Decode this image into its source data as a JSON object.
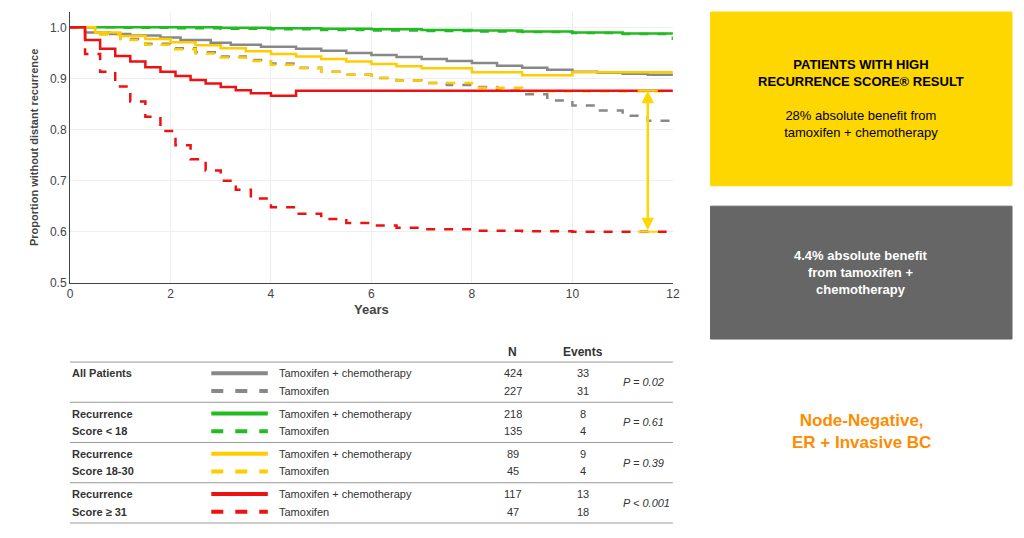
{
  "chart_data": {
    "type": "step",
    "xlabel": "Years",
    "ylabel": "Proportion without distant recurrence",
    "xlim": [
      0,
      12
    ],
    "ylim": [
      0.5,
      1.03
    ],
    "xticks": [
      0,
      2,
      4,
      6,
      8,
      10,
      12
    ],
    "yticks": [
      0.5,
      0.6,
      0.7,
      0.8,
      0.9,
      {
        "value": 1.0,
        "label": "1.0"
      }
    ],
    "series": [
      {
        "color": "#888888",
        "line_style": "solid",
        "x": [
          0,
          0.3,
          0.8,
          1.2,
          1.8,
          2.2,
          2.8,
          3.2,
          3.8,
          4.5,
          5,
          5.5,
          6,
          6.5,
          7,
          7.5,
          8,
          8.5,
          9,
          9.5,
          10,
          10.5,
          11,
          11.5,
          12
        ],
        "values": [
          1.0,
          0.99,
          0.987,
          0.984,
          0.98,
          0.975,
          0.97,
          0.966,
          0.962,
          0.958,
          0.954,
          0.95,
          0.946,
          0.942,
          0.938,
          0.934,
          0.93,
          0.925,
          0.921,
          0.917,
          0.913,
          0.911,
          0.909,
          0.907,
          0.905
        ]
      },
      {
        "color": "#888888",
        "line_style": "dashed",
        "x": [
          0,
          0.5,
          1,
          1.5,
          2,
          2.5,
          3,
          3.5,
          4,
          4.5,
          5,
          5.5,
          6,
          6.5,
          7,
          7.5,
          8,
          8.5,
          9,
          9.5,
          10,
          10.5,
          11,
          11.5,
          12
        ],
        "values": [
          1.0,
          0.987,
          0.977,
          0.968,
          0.959,
          0.951,
          0.943,
          0.936,
          0.929,
          0.921,
          0.913,
          0.907,
          0.901,
          0.896,
          0.891,
          0.887,
          0.883,
          0.876,
          0.869,
          0.857,
          0.847,
          0.837,
          0.827,
          0.817,
          0.81
        ]
      },
      {
        "color": "#22bb22",
        "line_style": "solid",
        "x": [
          0,
          1,
          2,
          3,
          4,
          5,
          6,
          7,
          8,
          9,
          10,
          11,
          12
        ],
        "values": [
          1.0,
          1.0,
          1.0,
          0.999,
          0.998,
          0.997,
          0.996,
          0.995,
          0.994,
          0.992,
          0.99,
          0.988,
          0.986
        ]
      },
      {
        "color": "#22bb22",
        "line_style": "dashed",
        "x": [
          0,
          1,
          2,
          3,
          4,
          5,
          6,
          7,
          8,
          9,
          10,
          11,
          12
        ],
        "values": [
          1.0,
          0.999,
          0.998,
          0.997,
          0.996,
          0.995,
          0.994,
          0.993,
          0.992,
          0.991,
          0.989,
          0.987,
          0.975
        ]
      },
      {
        "color": "#ffcc00",
        "line_style": "solid",
        "x": [
          0,
          0.5,
          1,
          1.5,
          2,
          2.5,
          3,
          3.5,
          4,
          4.5,
          5,
          5.5,
          6,
          6.5,
          7,
          8,
          9,
          10,
          11,
          12
        ],
        "values": [
          1.0,
          0.99,
          0.983,
          0.977,
          0.971,
          0.965,
          0.959,
          0.953,
          0.948,
          0.943,
          0.938,
          0.933,
          0.928,
          0.924,
          0.92,
          0.912,
          0.906,
          0.912,
          0.912,
          0.912
        ]
      },
      {
        "color": "#ffcc00",
        "line_style": "dashed",
        "x": [
          0,
          0.5,
          1,
          1.5,
          2,
          2.5,
          3,
          3.5,
          4,
          4.5,
          5,
          5.5,
          6,
          6.5,
          7,
          8,
          9,
          10,
          11,
          12
        ],
        "values": [
          1.0,
          0.986,
          0.975,
          0.966,
          0.957,
          0.949,
          0.941,
          0.934,
          0.927,
          0.92,
          0.913,
          0.907,
          0.901,
          0.896,
          0.891,
          0.882,
          0.875,
          0.875,
          0.875,
          0.875
        ]
      },
      {
        "color": "#ee1111",
        "line_style": "solid",
        "x": [
          0,
          0.3,
          0.6,
          0.9,
          1.2,
          1.5,
          1.8,
          2.1,
          2.4,
          2.7,
          3.0,
          3.3,
          3.6,
          4.0,
          4.5,
          5.0,
          5.5,
          6.0,
          6.5,
          7.0,
          7.5,
          8.0,
          8.5,
          9.0,
          9.5,
          10.0,
          10.5,
          11.0,
          11.5,
          12.0
        ],
        "values": [
          1.0,
          0.975,
          0.958,
          0.944,
          0.933,
          0.922,
          0.913,
          0.905,
          0.897,
          0.89,
          0.883,
          0.877,
          0.871,
          0.866,
          0.876,
          0.876,
          0.876,
          0.876,
          0.876,
          0.876,
          0.876,
          0.876,
          0.876,
          0.876,
          0.876,
          0.876,
          0.876,
          0.876,
          0.876,
          0.876
        ]
      },
      {
        "color": "#ee1111",
        "line_style": "dashed",
        "x": [
          0,
          0.3,
          0.6,
          0.9,
          1.2,
          1.5,
          1.8,
          2.1,
          2.4,
          2.7,
          3.0,
          3.3,
          3.6,
          4.0,
          4.5,
          5.0,
          5.5,
          6.0,
          6.5,
          7.0,
          8.0,
          9.0,
          10.0,
          11.0,
          12.0
        ],
        "values": [
          1.0,
          0.948,
          0.913,
          0.884,
          0.855,
          0.825,
          0.797,
          0.769,
          0.742,
          0.72,
          0.7,
          0.682,
          0.665,
          0.648,
          0.635,
          0.625,
          0.617,
          0.612,
          0.608,
          0.605,
          0.602,
          0.601,
          0.6,
          0.6,
          0.6
        ]
      }
    ],
    "arrow": {
      "x": 11.5,
      "from": 0.6,
      "to": 0.876,
      "color": "#FFD700"
    },
    "table": {
      "columns": [
        "N",
        "Events"
      ],
      "rows": [
        {
          "group": [
            "All Patients"
          ],
          "pval": "P = 0.02",
          "lines": [
            {
              "color": "#888888",
              "line_style": "solid",
              "label": "Tamoxifen + chemotherapy",
              "n": 424,
              "events": 33
            },
            {
              "color": "#888888",
              "line_style": "dashed",
              "label": "Tamoxifen",
              "n": 227,
              "events": 31
            }
          ]
        },
        {
          "group": [
            "Recurrence",
            "Score < 18"
          ],
          "pval": "P = 0.61",
          "lines": [
            {
              "color": "#22bb22",
              "line_style": "solid",
              "label": "Tamoxifen + chemotherapy",
              "n": 218,
              "events": 8
            },
            {
              "color": "#22bb22",
              "line_style": "dashed",
              "label": "Tamoxifen",
              "n": 135,
              "events": 4
            }
          ]
        },
        {
          "group": [
            "Recurrence",
            "Score 18-30"
          ],
          "pval": "P = 0.39",
          "lines": [
            {
              "color": "#ffcc00",
              "line_style": "solid",
              "label": "Tamoxifen + chemotherapy",
              "n": 89,
              "events": 9
            },
            {
              "color": "#ffcc00",
              "line_style": "dashed",
              "label": "Tamoxifen",
              "n": 45,
              "events": 4
            }
          ]
        },
        {
          "group": [
            "Recurrence",
            "Score ≥ 31"
          ],
          "pval": "P < 0.001",
          "lines": [
            {
              "color": "#ee1111",
              "line_style": "solid",
              "label": "Tamoxifen + chemotherapy",
              "n": 117,
              "events": 13
            },
            {
              "color": "#ee1111",
              "line_style": "dashed",
              "label": "Tamoxifen",
              "n": 47,
              "events": 18
            }
          ]
        }
      ]
    },
    "annotations": [
      {
        "title": [
          "PATIENTS WITH HIGH",
          "RECURRENCE SCORE® RESULT"
        ],
        "body": [
          "28% absolute benefit from",
          "tamoxifen + chemotherapy"
        ],
        "color": "#FFD700",
        "text_color": "#000000"
      },
      {
        "title": [
          "4.4% absolute benefit",
          "from tamoxifen +",
          "chemotherapy"
        ],
        "color": "#666666",
        "text_color": "#ffffff"
      },
      {
        "title": [
          "Node-Negative,",
          "ER + Invasive BC"
        ],
        "text_color": "#ff8c00"
      }
    ]
  }
}
